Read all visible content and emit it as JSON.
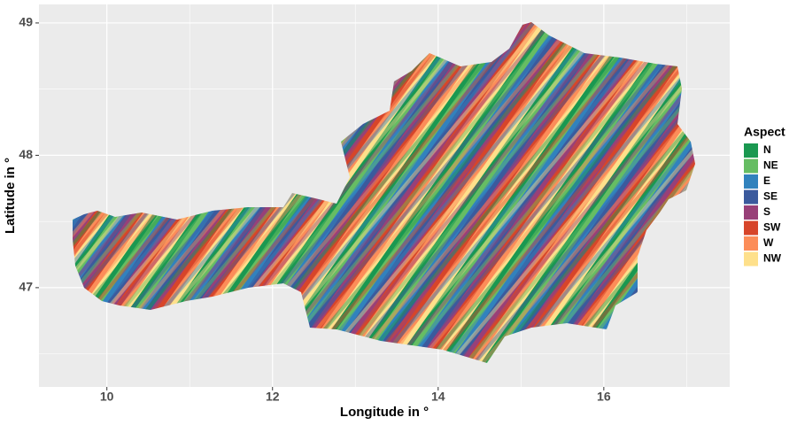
{
  "chart_data": {
    "type": "raster",
    "xlabel": "Longitude in °",
    "ylabel": "Latitude in °",
    "xlim": [
      9.18,
      17.52
    ],
    "ylim": [
      46.25,
      49.14
    ],
    "xticks": [
      10,
      12,
      14,
      16
    ],
    "yticks": [
      47,
      48,
      49
    ],
    "legend_title": "Aspect",
    "series": [
      {
        "name": "N",
        "color": "#1a9850"
      },
      {
        "name": "NE",
        "color": "#66bd63"
      },
      {
        "name": "E",
        "color": "#3182bd"
      },
      {
        "name": "SE",
        "color": "#3b5a9d"
      },
      {
        "name": "S",
        "color": "#984078"
      },
      {
        "name": "SW",
        "color": "#d7452a"
      },
      {
        "name": "W",
        "color": "#fc8d59"
      },
      {
        "name": "NW",
        "color": "#fee08b"
      }
    ]
  }
}
